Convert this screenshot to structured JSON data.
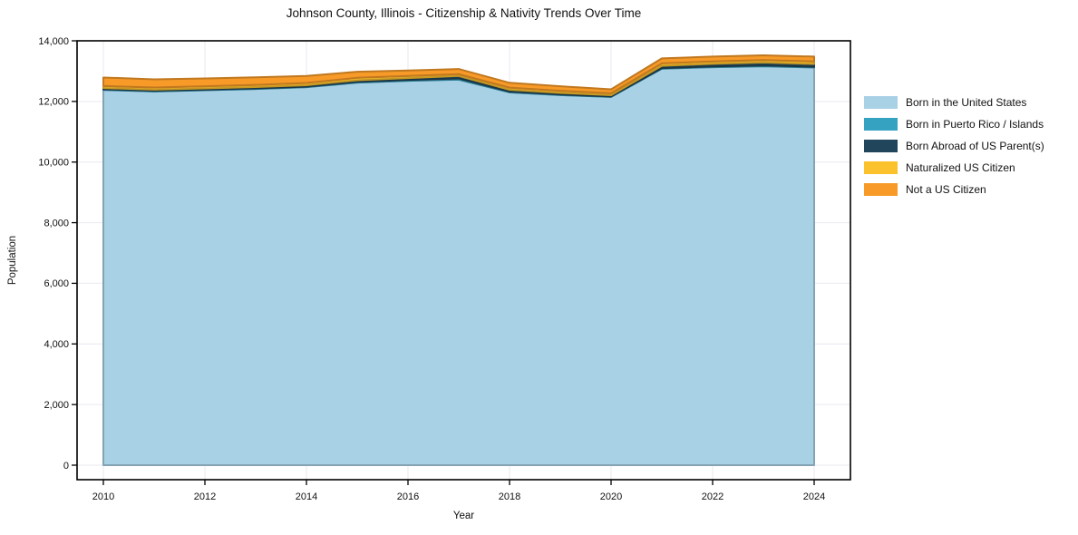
{
  "figure": {
    "background": "#ffffff",
    "axis_color": "#000000",
    "grid_color": "#e9e9f0",
    "text_color": "#111111"
  },
  "chart_data": {
    "type": "area",
    "stacked": true,
    "title": "Johnson County, Illinois - Citizenship & Nativity Trends Over Time",
    "xlabel": "Year",
    "ylabel": "Population",
    "grid": true,
    "legend_position": "right",
    "xlim": [
      2009.5,
      2024.7
    ],
    "ylim": [
      0,
      14000
    ],
    "x": [
      2010,
      2011,
      2012,
      2013,
      2014,
      2015,
      2016,
      2017,
      2018,
      2019,
      2020,
      2021,
      2022,
      2023,
      2024
    ],
    "x_ticks": [
      {
        "value": 2010,
        "label": "2010"
      },
      {
        "value": 2012,
        "label": "2012"
      },
      {
        "value": 2014,
        "label": "2014"
      },
      {
        "value": 2016,
        "label": "2016"
      },
      {
        "value": 2018,
        "label": "2018"
      },
      {
        "value": 2020,
        "label": "2020"
      },
      {
        "value": 2022,
        "label": "2022"
      },
      {
        "value": 2024,
        "label": "2024"
      }
    ],
    "y_ticks": [
      {
        "value": 0,
        "label": "0"
      },
      {
        "value": 2000,
        "label": "2,000"
      },
      {
        "value": 4000,
        "label": "4,000"
      },
      {
        "value": 6000,
        "label": "6,000"
      },
      {
        "value": 8000,
        "label": "8,000"
      },
      {
        "value": 10000,
        "label": "10,000"
      },
      {
        "value": 12000,
        "label": "12,000"
      },
      {
        "value": 14000,
        "label": "14,000"
      }
    ],
    "series": [
      {
        "name": "Born in the United States",
        "color": "#a9d1e6",
        "values": [
          12380,
          12330,
          12370,
          12410,
          12470,
          12620,
          12680,
          12720,
          12300,
          12210,
          12150,
          13080,
          13130,
          13160,
          13120
        ]
      },
      {
        "name": "Born in Puerto Rico / Islands",
        "color": "#35a2c2",
        "values": [
          20,
          20,
          20,
          20,
          20,
          25,
          30,
          40,
          25,
          20,
          15,
          20,
          25,
          30,
          25
        ]
      },
      {
        "name": "Born Abroad of US Parent(s)",
        "color": "#21455a",
        "values": [
          40,
          40,
          40,
          45,
          45,
          55,
          60,
          80,
          60,
          50,
          40,
          75,
          85,
          95,
          90
        ]
      },
      {
        "name": "Naturalized US Citizen",
        "color": "#fcc22d",
        "values": [
          70,
          70,
          70,
          70,
          75,
          80,
          70,
          60,
          70,
          70,
          65,
          80,
          80,
          80,
          85
        ]
      },
      {
        "name": "Not a US Citizen",
        "color": "#f79a28",
        "values": [
          280,
          270,
          260,
          250,
          230,
          200,
          180,
          170,
          160,
          150,
          130,
          165,
          160,
          155,
          160
        ]
      }
    ]
  }
}
